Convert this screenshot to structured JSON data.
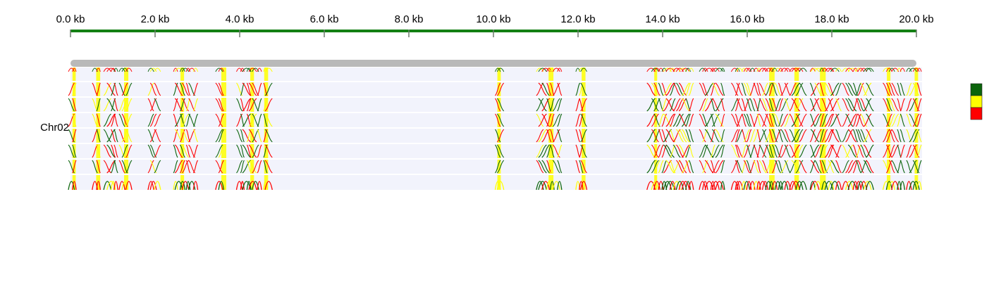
{
  "ruler": {
    "labels": [
      "0.0 kb",
      "2.0 kb",
      "4.0 kb",
      "6.0 kb",
      "8.0 kb",
      "10.0 kb",
      "12.0 kb",
      "14.0 kb",
      "16.0 kb",
      "18.0 kb",
      "20.0 kb"
    ],
    "start_kb": 0,
    "end_kb": 20,
    "color": "#138013"
  },
  "chromosome": {
    "name": "Chr02",
    "bar_color": "#b9b9b9",
    "track_background": "#f2f3fc",
    "row_count": 8
  },
  "clusters_kb": [
    {
      "start": 0.0,
      "end": 0.12
    },
    {
      "start": 0.55,
      "end": 0.7
    },
    {
      "start": 0.85,
      "end": 1.12
    },
    {
      "start": 1.2,
      "end": 1.4
    },
    {
      "start": 1.85,
      "end": 2.1
    },
    {
      "start": 2.45,
      "end": 2.98
    },
    {
      "start": 3.5,
      "end": 3.6
    },
    {
      "start": 3.95,
      "end": 4.5
    },
    {
      "start": 4.55,
      "end": 4.72
    },
    {
      "start": 10.08,
      "end": 10.2
    },
    {
      "start": 11.05,
      "end": 11.6
    },
    {
      "start": 11.95,
      "end": 12.18
    },
    {
      "start": 13.7,
      "end": 14.72
    },
    {
      "start": 14.9,
      "end": 15.45
    },
    {
      "start": 15.65,
      "end": 16.98
    },
    {
      "start": 17.05,
      "end": 17.35
    },
    {
      "start": 17.5,
      "end": 18.18
    },
    {
      "start": 18.3,
      "end": 18.95
    },
    {
      "start": 19.25,
      "end": 19.7
    },
    {
      "start": 19.8,
      "end": 20.1
    }
  ],
  "legend": {
    "colors": [
      "#0b640b",
      "#ffff00",
      "#ff0000"
    ]
  }
}
